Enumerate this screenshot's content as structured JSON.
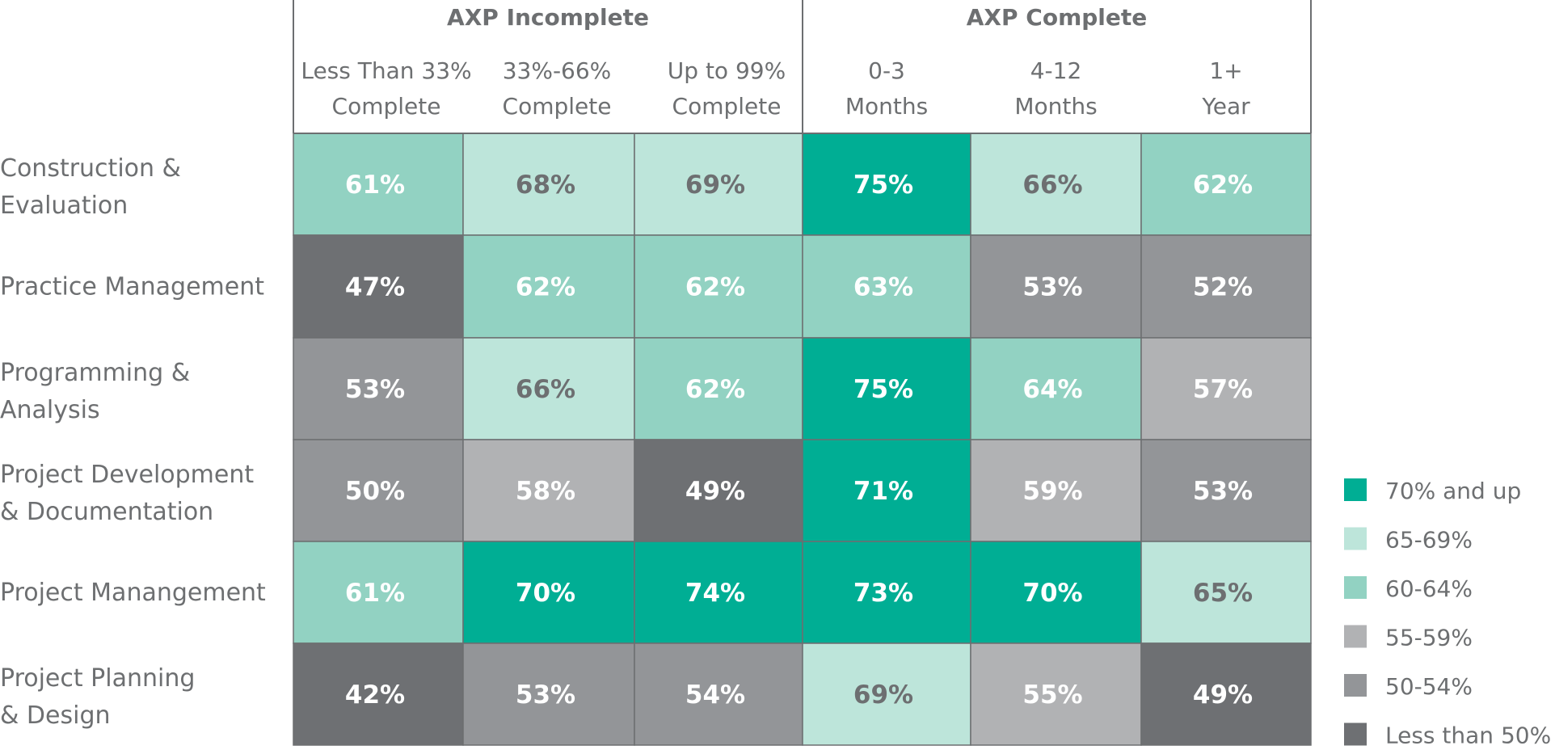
{
  "chart_data": {
    "type": "heatmap",
    "groups": [
      {
        "label": "AXP Incomplete",
        "span": 3
      },
      {
        "label": "AXP Complete",
        "span": 3
      }
    ],
    "columns": [
      {
        "line1": "Less Than 33%",
        "line2": "Complete"
      },
      {
        "line1": "33%-66%",
        "line2": "Complete"
      },
      {
        "line1": "Up to 99%",
        "line2": "Complete"
      },
      {
        "line1": "0-3",
        "line2": "Months"
      },
      {
        "line1": "4-12",
        "line2": "Months"
      },
      {
        "line1": "1+",
        "line2": "Year"
      }
    ],
    "rows": [
      {
        "line1": "Construction &",
        "line2": "Evaluation"
      },
      {
        "line1": "Practice Management",
        "line2": ""
      },
      {
        "line1": "Programming &",
        "line2": "Analysis"
      },
      {
        "line1": "Project Development",
        "line2": "& Documentation"
      },
      {
        "line1": "Project Manangement",
        "line2": ""
      },
      {
        "line1": "Project Planning",
        "line2": "& Design"
      }
    ],
    "values": [
      [
        61,
        68,
        69,
        75,
        66,
        62
      ],
      [
        47,
        62,
        62,
        63,
        53,
        52
      ],
      [
        53,
        66,
        62,
        75,
        64,
        57
      ],
      [
        50,
        58,
        49,
        71,
        59,
        53
      ],
      [
        61,
        70,
        74,
        73,
        70,
        65
      ],
      [
        42,
        53,
        54,
        69,
        55,
        49
      ]
    ],
    "value_suffix": "%",
    "legend": [
      {
        "label": "70% and up",
        "color": "#00ae94"
      },
      {
        "label": "65-69%",
        "color": "#bde5da"
      },
      {
        "label": "60-64%",
        "color": "#92d2c2"
      },
      {
        "label": "55-59%",
        "color": "#b1b2b4"
      },
      {
        "label": "50-54%",
        "color": "#939598"
      },
      {
        "label": "Less than 50%",
        "color": "#6e7073"
      }
    ]
  }
}
